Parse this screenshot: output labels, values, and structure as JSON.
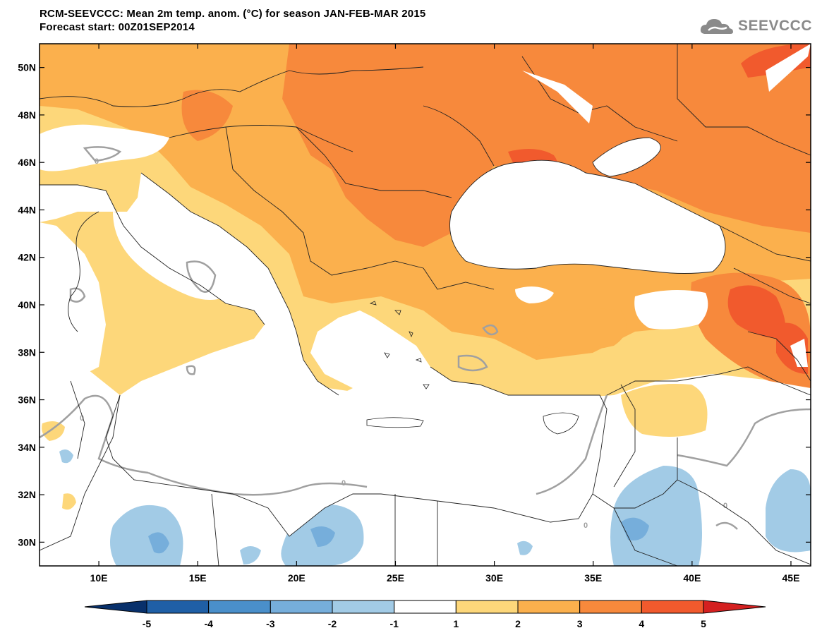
{
  "title": {
    "line1": "RCM-SEEVCCC: Mean 2m temp. anom. (°C) for season JAN-FEB-MAR 2015",
    "line2": "Forecast start: 00Z01SEP2014"
  },
  "logo": {
    "text": "SEEVCCC",
    "icon": "cloud-icon"
  },
  "map": {
    "lon_range": [
      7,
      46
    ],
    "lat_range": [
      29,
      51
    ],
    "lat_ticks": [
      "50N",
      "48N",
      "46N",
      "44N",
      "42N",
      "40N",
      "38N",
      "36N",
      "34N",
      "32N",
      "30N"
    ],
    "lon_ticks": [
      "10E",
      "15E",
      "20E",
      "25E",
      "30E",
      "35E",
      "40E",
      "45E"
    ],
    "contour_labels": [
      "0",
      "0",
      "0",
      "0",
      "0"
    ]
  },
  "colorbar": {
    "labels": [
      "-5",
      "-4",
      "-3",
      "-2",
      "-1",
      "1",
      "2",
      "3",
      "4",
      "5"
    ],
    "colors": [
      "#08306b",
      "#1f5fa6",
      "#4a8fca",
      "#76aedb",
      "#a2cbe6",
      "#ffffff",
      "#fdd77a",
      "#fbb04d",
      "#f7893c",
      "#f15a2d",
      "#d42020"
    ]
  },
  "colors": {
    "sea": "#ffffff",
    "pos1": "#fdd77a",
    "pos2": "#fbb04d",
    "pos3": "#f7893c",
    "pos4": "#f15a2d",
    "neg1": "#a2cbe6",
    "neg2": "#76aedb",
    "contour": "#a0a0a0",
    "border": "#222222"
  }
}
